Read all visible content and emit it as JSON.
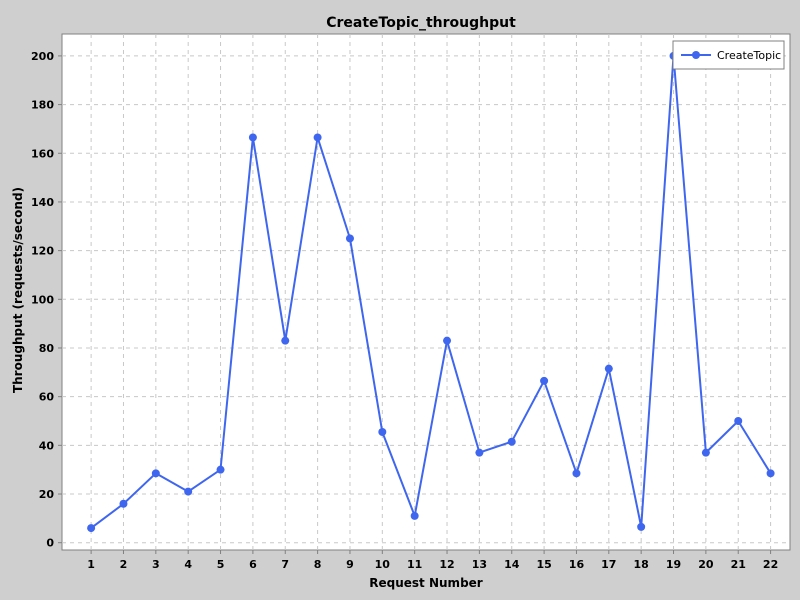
{
  "chart_data": {
    "type": "line",
    "title": "CreateTopic_throughput",
    "xlabel": "Request Number",
    "ylabel": "Throughput (requests/second)",
    "x": [
      1,
      2,
      3,
      4,
      5,
      6,
      7,
      8,
      9,
      10,
      11,
      12,
      13,
      14,
      15,
      16,
      17,
      18,
      19,
      20,
      21,
      22
    ],
    "xlim": [
      0.1,
      22.6
    ],
    "ylim": [
      -3,
      209
    ],
    "yticks": [
      0,
      20,
      40,
      60,
      80,
      100,
      120,
      140,
      160,
      180,
      200
    ],
    "grid": true,
    "legend_position": "top-right",
    "series": [
      {
        "name": "CreateTopic",
        "color": "#3f66ee",
        "values": [
          6,
          16,
          28.5,
          21,
          30,
          166.5,
          83,
          166.5,
          125,
          45.5,
          11,
          83,
          37,
          41.5,
          66.5,
          28.5,
          71.5,
          6.5,
          200,
          37,
          50,
          28.5
        ]
      }
    ]
  },
  "colors": {
    "background": "#cfcfcf",
    "plot_background": "#ffffff",
    "grid": "#c8c8c8",
    "axis": "#808080"
  }
}
